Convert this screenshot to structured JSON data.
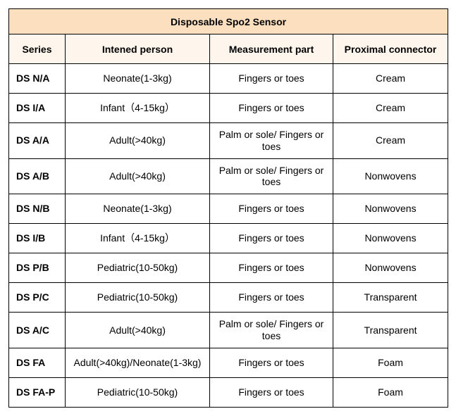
{
  "title": "Disposable Spo2 Sensor",
  "title_bg": "#fcdfbf",
  "header_bg": "#fef5ec",
  "border_color": "#000000",
  "columns": [
    {
      "label": "Series"
    },
    {
      "label": "Intened person"
    },
    {
      "label": "Measurement part"
    },
    {
      "label": "Proximal connector"
    }
  ],
  "rows": [
    {
      "series": "DS N/A",
      "person": "Neonate(1-3kg)",
      "part": "Fingers or toes",
      "connector": "Cream"
    },
    {
      "series": "DS I/A",
      "person": "Infant（4-15kg）",
      "part": "Fingers or toes",
      "connector": "Cream"
    },
    {
      "series": "DS A/A",
      "person": "Adult(>40kg)",
      "part": "Palm or sole/   Fingers or toes",
      "connector": "Cream"
    },
    {
      "series": "DS A/B",
      "person": "Adult(>40kg)",
      "part": "Palm or sole/   Fingers or toes",
      "connector": "Nonwovens"
    },
    {
      "series": "DS N/B",
      "person": "Neonate(1-3kg)",
      "part": "Fingers or toes",
      "connector": "Nonwovens"
    },
    {
      "series": "DS I/B",
      "person": "Infant（4-15kg）",
      "part": "Fingers or toes",
      "connector": "Nonwovens"
    },
    {
      "series": "DS P/B",
      "person": "Pediatric(10-50kg)",
      "part": "Fingers or toes",
      "connector": "Nonwovens"
    },
    {
      "series": "DS P/C",
      "person": "Pediatric(10-50kg)",
      "part": "Fingers or toes",
      "connector": "Transparent"
    },
    {
      "series": "DS A/C",
      "person": "Adult(>40kg)",
      "part": "Palm or sole/   Fingers or toes",
      "connector": "Transparent"
    },
    {
      "series": "DS FA",
      "person": "Adult(>40kg)/Neonate(1-3kg)",
      "part": "Fingers or toes",
      "connector": "Foam"
    },
    {
      "series": "DS FA-P",
      "person": "Pediatric(10-50kg)",
      "part": "Fingers or toes",
      "connector": "Foam"
    }
  ]
}
